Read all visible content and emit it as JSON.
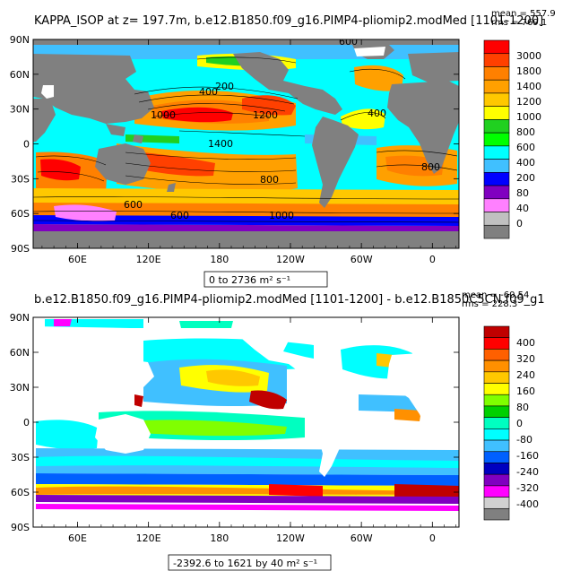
{
  "chart_data": [
    {
      "type": "heatmap",
      "title": "KAPPA_ISOP at z=  197.7m, b.e12.B1850.f09_g16.PIMP4-pliomip2.modMed [1101-1200]",
      "stats": [
        "mean = 557.9",
        "rms = 769.1"
      ],
      "range_label": "0 to 2736 m² s⁻¹",
      "x_ticks": [
        "60E",
        "120E",
        "180",
        "120W",
        "60W",
        "0"
      ],
      "y_ticks": [
        "90N",
        "60N",
        "30N",
        "0",
        "30S",
        "60S",
        "90S"
      ],
      "colorbar": {
        "labels": [
          "3000",
          "1800",
          "1400",
          "1200",
          "1000",
          "800",
          "600",
          "400",
          "200",
          "80",
          "40",
          "0"
        ],
        "colors": [
          "#ff0000",
          "#ff4000",
          "#ff8000",
          "#ffa000",
          "#ffc800",
          "#ffff00",
          "#20d020",
          "#00ff00",
          "#00ffff",
          "#40c0ff",
          "#0000ff",
          "#8000c0",
          "#ff80ff",
          "#c0c0c0",
          "#808080"
        ]
      },
      "contour_labels": [
        "600",
        "1400",
        "800",
        "1000",
        "200",
        "400",
        "1200",
        "400",
        "600",
        "800",
        "600",
        "1000"
      ]
    },
    {
      "type": "heatmap",
      "title": "b.e12.B1850.f09_g16.PIMP4-pliomip2.modMed [1101-1200] - b.e12.B1850C5CN.f09_g1",
      "stats": [
        "mean = -60.54",
        "rms = 228.3"
      ],
      "range_label": "-2392.6 to 1621 by 40 m² s⁻¹",
      "x_ticks": [
        "60E",
        "120E",
        "180",
        "120W",
        "60W",
        "0"
      ],
      "y_ticks": [
        "90N",
        "60N",
        "30N",
        "0",
        "30S",
        "60S",
        "90S"
      ],
      "colorbar": {
        "labels": [
          "400",
          "320",
          "240",
          "160",
          "80",
          "0",
          "-80",
          "-160",
          "-240",
          "-320",
          "-400"
        ],
        "colors": [
          "#c00000",
          "#ff0000",
          "#ff6000",
          "#ff9000",
          "#ffc800",
          "#ffff00",
          "#80ff00",
          "#00d000",
          "#00ffc0",
          "#00ffff",
          "#40c0ff",
          "#0060ff",
          "#0000c0",
          "#8000c0",
          "#ff00ff",
          "#d0d0d0",
          "#808080"
        ]
      }
    }
  ]
}
